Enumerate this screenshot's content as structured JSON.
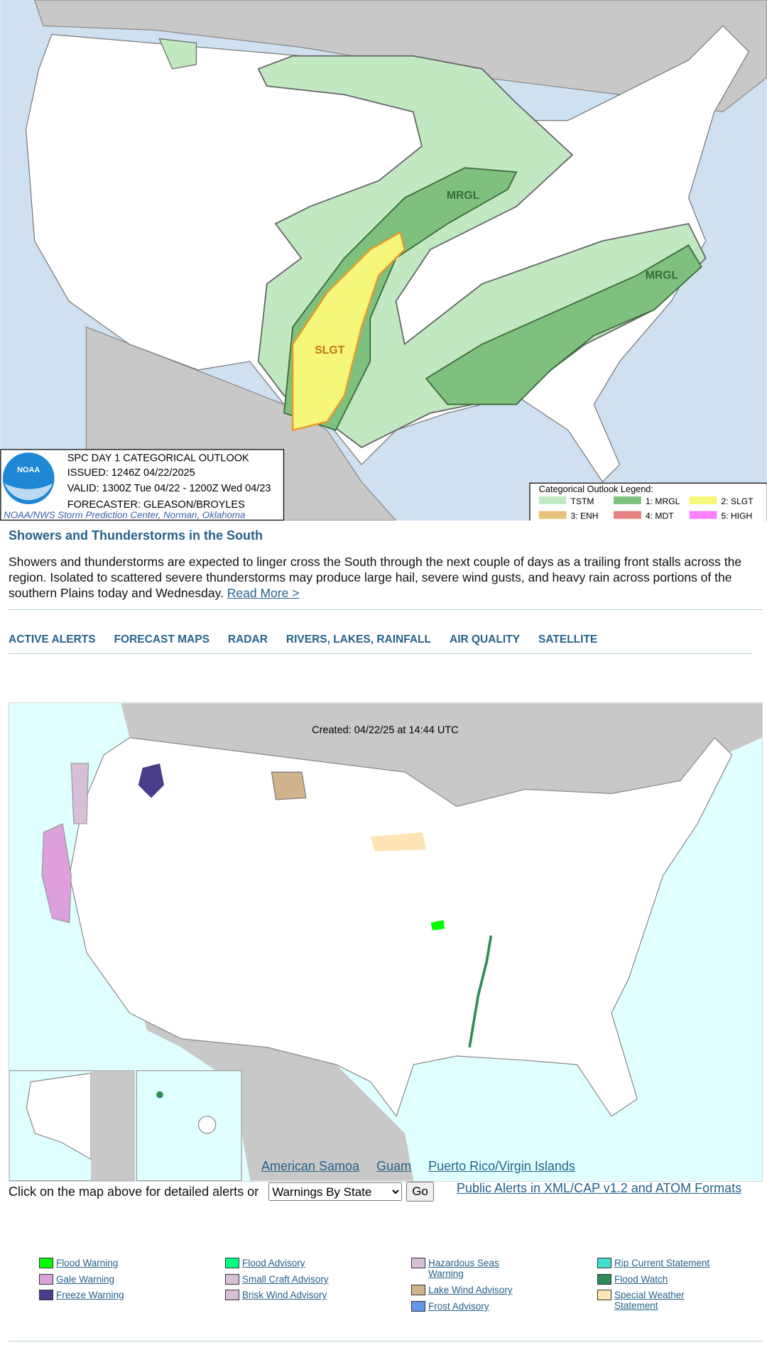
{
  "outlook_map": {
    "logo": "NOAA",
    "title": "SPC DAY 1 CATEGORICAL OUTLOOK",
    "issued": "ISSUED: 1246Z 04/22/2025",
    "valid": "VALID: 1300Z Tue 04/22 - 1200Z Wed 04/23",
    "forecaster": "FORECASTER: GLEASON/BROYLES",
    "credit": "NOAA/NWS Storm Prediction Center, Norman, Oklahoma",
    "area_labels": [
      "MRGL",
      "MRGL",
      "SLGT"
    ],
    "legend": {
      "title": "Categorical Outlook Legend:",
      "items": [
        "TSTM",
        "1: MRGL",
        "2: SLGT",
        "3: ENH",
        "4: MDT",
        "5: HIGH"
      ]
    }
  },
  "headline": {
    "title": "Showers and Thunderstorms in the South",
    "body": "Showers and thunderstorms are expected to linger cross the South through the next couple of days as a trailing front stalls across the region. Isolated to scattered severe thunderstorms may produce large hail, severe wind gusts, and heavy rain across portions of the southern Plains today and Wednesday.",
    "link": "Read More >"
  },
  "nav": [
    "ACTIVE ALERTS",
    "FORECAST MAPS",
    "RADAR",
    "RIVERS, LAKES, RAINFALL",
    "AIR QUALITY",
    "SATELLITE"
  ],
  "alerts_map": {
    "created": "Created: 04/22/25 at 14:44 UTC",
    "territory_links": [
      "American Samoa",
      "Guam",
      "Puerto Rico/Virgin Islands"
    ]
  },
  "controls": {
    "prompt": "Click on the map above for detailed alerts or",
    "select": "Warnings By State",
    "button": "Go",
    "feeds_link": "Public Alerts in XML/CAP v1.2 and ATOM Formats"
  },
  "legend": [
    [
      "Flood Warning",
      "Gale Warning",
      "Freeze Warning"
    ],
    [
      "Flood Advisory",
      "Small Craft Advisory",
      "Brisk Wind Advisory"
    ],
    [
      "Hazardous Seas Warning",
      "Lake Wind Advisory",
      "Frost Advisory"
    ],
    [
      "Rip Current Statement",
      "Flood Watch",
      "Special Weather Statement"
    ]
  ]
}
